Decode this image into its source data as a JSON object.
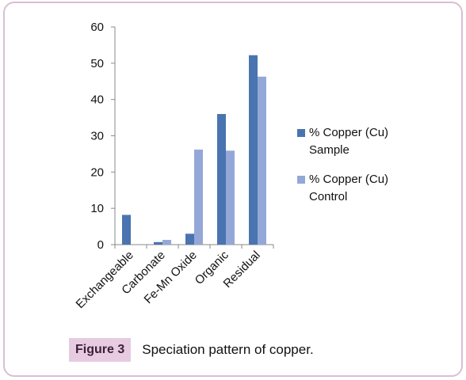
{
  "chart_data": {
    "type": "bar",
    "categories": [
      "Exchangeable",
      "Carbonate",
      "Fe-Mn Oxide",
      "Organic",
      "Residual"
    ],
    "series": [
      {
        "name": "% Copper (Cu) Sample",
        "legend_lines": [
          "% Copper (Cu)",
          "Sample"
        ],
        "color": "#4a74b0",
        "values": [
          8.2,
          0.7,
          3.0,
          36.0,
          52.2
        ]
      },
      {
        "name": "% Copper (Cu) Control",
        "legend_lines": [
          "% Copper (Cu)",
          "Control"
        ],
        "color": "#94a8d8",
        "values": [
          0,
          1.3,
          26.2,
          25.9,
          46.3
        ]
      }
    ],
    "ylim": [
      0,
      60
    ],
    "yticks": [
      0,
      10,
      20,
      30,
      40,
      50,
      60
    ],
    "grid": false,
    "legend": "right"
  },
  "caption": {
    "label": "Figure 3",
    "text": "Speciation pattern of copper."
  }
}
